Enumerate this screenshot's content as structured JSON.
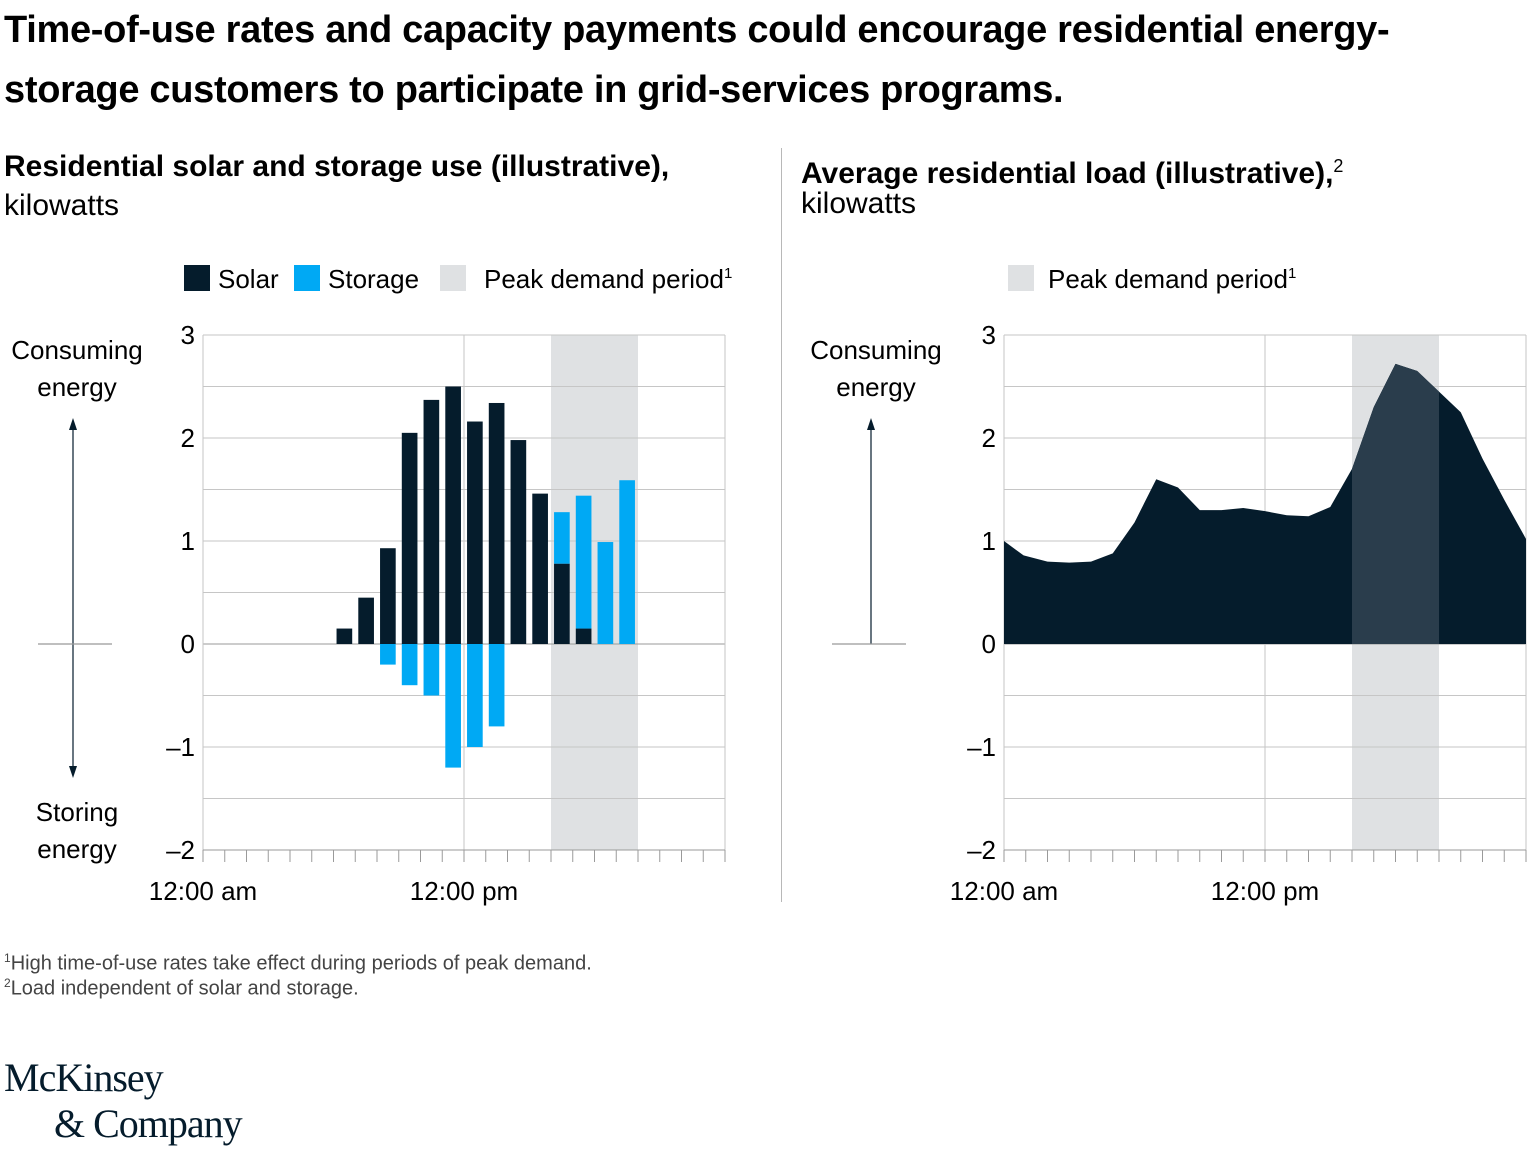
{
  "title": "Time-of-use rates and capacity payments could encourage residential energy-storage customers to participate in grid-services programs.",
  "footnotes": [
    {
      "mark": "1",
      "text": "High time-of-use rates take effect during periods of peak demand."
    },
    {
      "mark": "2",
      "text": "Load independent of solar and storage."
    }
  ],
  "logo": {
    "line1": "McKinsey",
    "line2": "& Company"
  },
  "colors": {
    "solar": "#051c2c",
    "storage": "#00a9f4",
    "peak": "#dfe1e3",
    "load": "#051c2c",
    "load_in_peak": "#2a3d4c",
    "grid": "#c6c6c6"
  },
  "chart_data": [
    {
      "type": "bar",
      "title": "Residential solar and storage use (illustrative),",
      "subtitle": "kilowatts",
      "legend": [
        {
          "label": "Solar",
          "sup": ""
        },
        {
          "label": "Storage",
          "sup": ""
        },
        {
          "label": "Peak demand period",
          "sup": "1"
        }
      ],
      "y_annotation_top": [
        "Consuming",
        "energy"
      ],
      "y_annotation_bottom": [
        "Storing",
        "energy"
      ],
      "ylim": [
        -2,
        3
      ],
      "yticks": [
        3,
        2,
        1,
        0,
        -1,
        -2
      ],
      "ytick_labels": [
        "3",
        "2",
        "1",
        "0",
        "–1",
        "–2"
      ],
      "xticks": [
        {
          "hour": 0,
          "label": "12:00 am"
        },
        {
          "hour": 12,
          "label": "12:00 pm"
        }
      ],
      "x_range_hours": [
        0,
        24
      ],
      "peak_period_hours": [
        16,
        20
      ],
      "series": [
        {
          "name": "Solar",
          "bars": [
            {
              "hour": 6.5,
              "value": 0.15
            },
            {
              "hour": 7.5,
              "value": 0.45
            },
            {
              "hour": 8.5,
              "value": 0.93
            },
            {
              "hour": 9.5,
              "value": 2.05
            },
            {
              "hour": 10.5,
              "value": 2.37
            },
            {
              "hour": 11.5,
              "value": 2.5
            },
            {
              "hour": 12.5,
              "value": 2.16
            },
            {
              "hour": 13.5,
              "value": 2.34
            },
            {
              "hour": 14.5,
              "value": 1.98
            },
            {
              "hour": 15.5,
              "value": 1.46
            },
            {
              "hour": 16.5,
              "value": 0.78
            },
            {
              "hour": 17.5,
              "value": 0.15
            }
          ]
        },
        {
          "name": "Storage",
          "bars": [
            {
              "hour": 8.5,
              "value": -0.2
            },
            {
              "hour": 9.5,
              "value": -0.4
            },
            {
              "hour": 10.5,
              "value": -0.5
            },
            {
              "hour": 11.5,
              "value": -1.2
            },
            {
              "hour": 12.5,
              "value": -1.0
            },
            {
              "hour": 13.5,
              "value": -0.8
            },
            {
              "hour": 16.5,
              "value": 0.5,
              "base": 0.78
            },
            {
              "hour": 17.5,
              "value": 1.29,
              "base": 0.15
            },
            {
              "hour": 18.5,
              "value": 0.99
            },
            {
              "hour": 19.5,
              "value": 1.59
            }
          ]
        }
      ]
    },
    {
      "type": "area",
      "title": "Average residential load (illustrative),",
      "title_sup": "2",
      "subtitle": "kilowatts",
      "legend": [
        {
          "label": "Peak demand period",
          "sup": "1"
        }
      ],
      "y_annotation_top": [
        "Consuming",
        "energy"
      ],
      "ylim": [
        -2,
        3
      ],
      "yticks": [
        3,
        2,
        1,
        0,
        -1,
        -2
      ],
      "ytick_labels": [
        "3",
        "2",
        "1",
        "0",
        "–1",
        "–2"
      ],
      "xticks": [
        {
          "hour": 0,
          "label": "12:00 am"
        },
        {
          "hour": 12,
          "label": "12:00 pm"
        }
      ],
      "x_range_hours": [
        0,
        24
      ],
      "peak_period_hours": [
        16,
        20
      ],
      "x": [
        0,
        0.9,
        2,
        3,
        4,
        5,
        6,
        7,
        8,
        9,
        10,
        11,
        12,
        13,
        14,
        15,
        16,
        17,
        18,
        19,
        20,
        21,
        22,
        23,
        24
      ],
      "y": [
        1.0,
        0.86,
        0.8,
        0.79,
        0.8,
        0.88,
        1.18,
        1.6,
        1.52,
        1.3,
        1.3,
        1.32,
        1.29,
        1.25,
        1.24,
        1.33,
        1.7,
        2.3,
        2.72,
        2.65,
        2.45,
        2.25,
        1.8,
        1.4,
        1.02
      ]
    }
  ]
}
